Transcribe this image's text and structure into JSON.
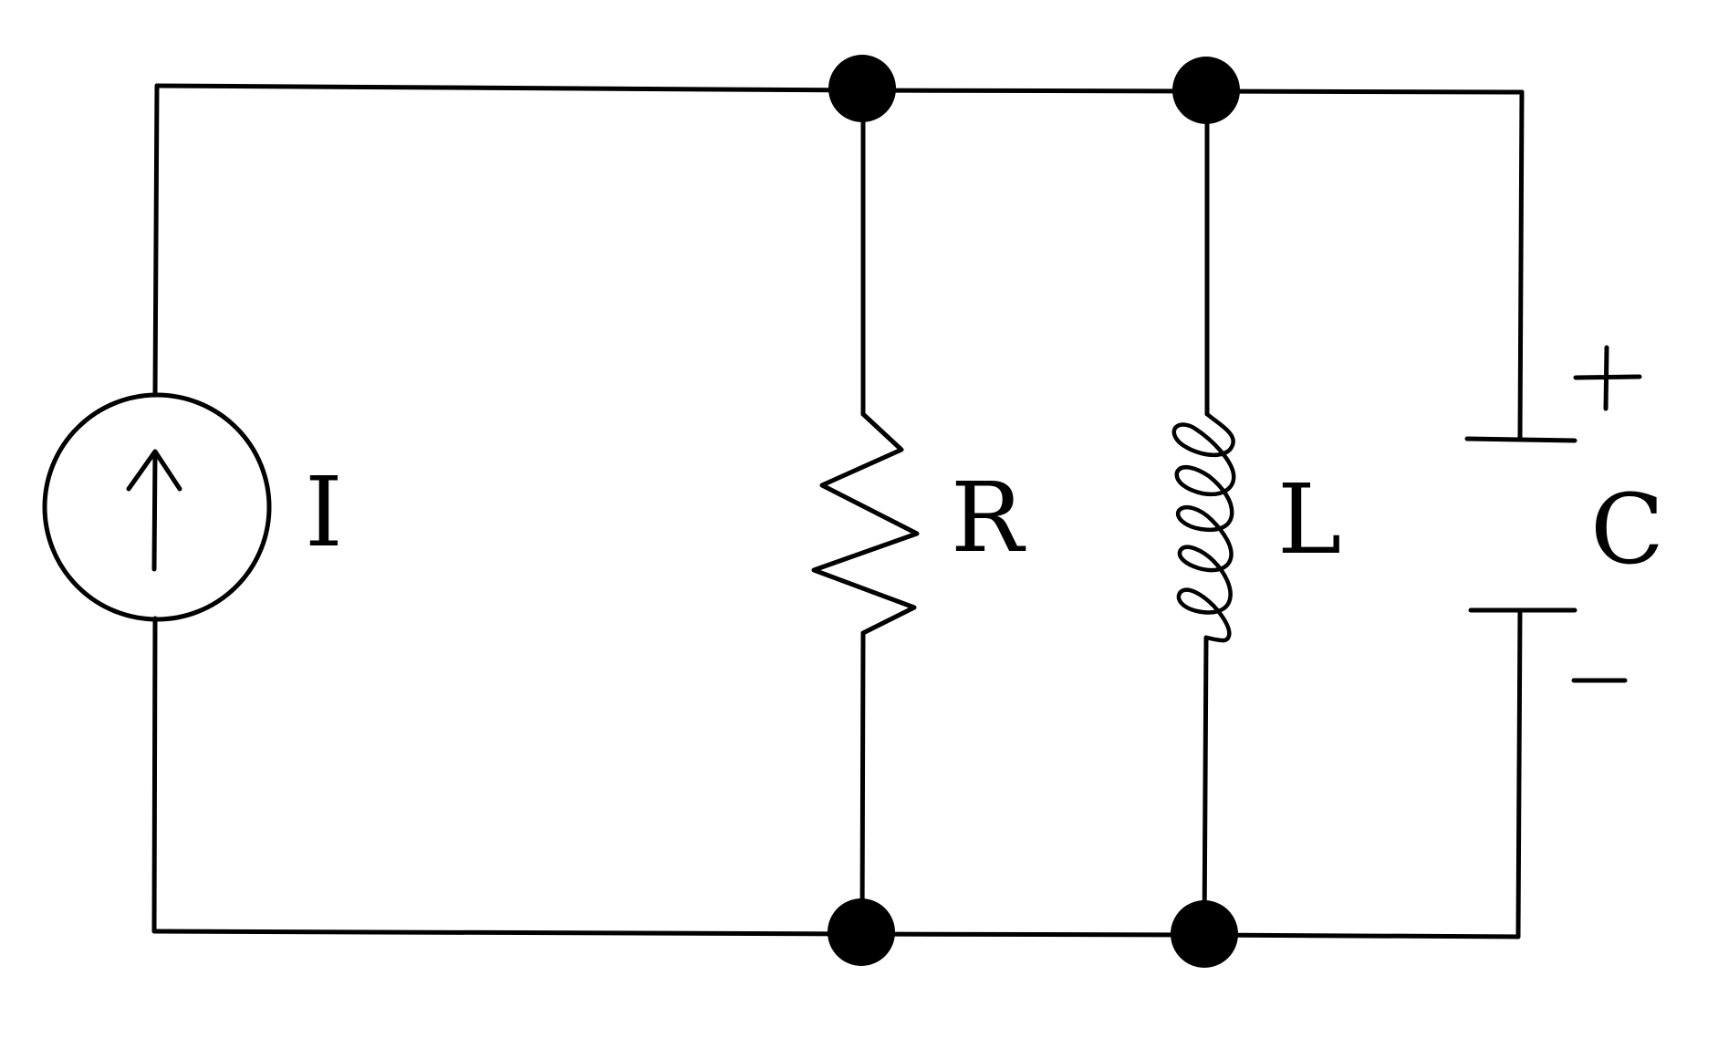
{
  "diagram": {
    "title": "",
    "components": [
      {
        "id": "current_source",
        "symbol": "current-source",
        "label": "I",
        "arrow": "up"
      },
      {
        "id": "resistor",
        "symbol": "resistor",
        "label": "R"
      },
      {
        "id": "inductor",
        "symbol": "inductor",
        "label": "L"
      },
      {
        "id": "capacitor",
        "symbol": "capacitor",
        "label": "C",
        "plus": "+",
        "minus": "−"
      }
    ],
    "connection": "parallel",
    "node_count": 4
  },
  "colors": {
    "ink": "#000000",
    "background": "#ffffff"
  }
}
